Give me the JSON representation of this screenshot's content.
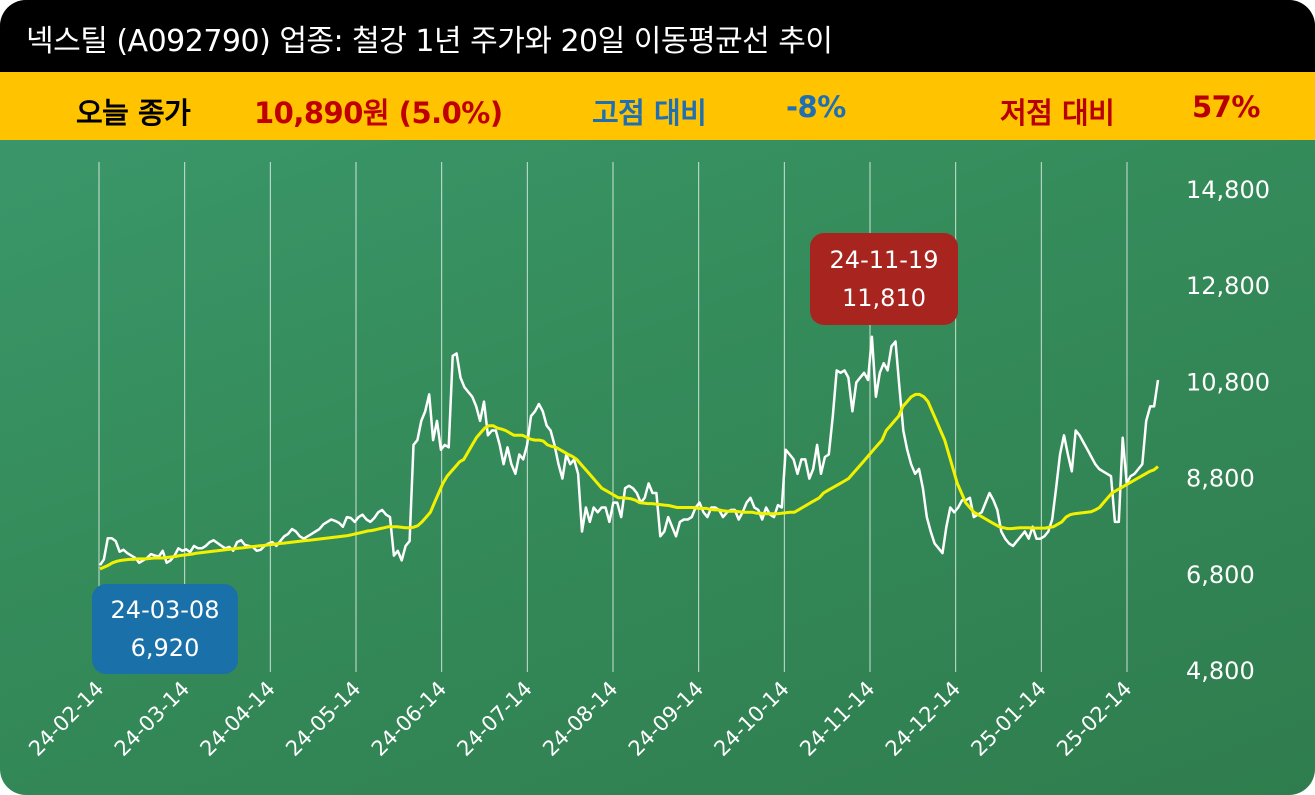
{
  "header": {
    "title": "넥스틸 (A092790) 업종: 철강 1년 주가와 20일 이동평균선 추이"
  },
  "stats": {
    "close_label": "오늘 종가",
    "close_value": "10,890원 (5.0%)",
    "high_label": "고점 대비",
    "high_value": "-8%",
    "low_label": "저점 대비",
    "low_value": "57%"
  },
  "colors": {
    "background": "#358c5b",
    "title_bar": "#000000",
    "stats_bar": "#ffc300",
    "close_value": "#c00000",
    "high_text": "#1f6fb2",
    "low_text": "#b80000",
    "price_line": "#ffffff",
    "ma_line": "#f2f200",
    "high_callout": "#a8241e",
    "low_callout": "#1a70a8"
  },
  "chart_data": {
    "type": "line",
    "y_ticks": [
      "14,800",
      "12,800",
      "10,800",
      "8,800",
      "6,800",
      "4,800"
    ],
    "ylim": [
      4800,
      14800
    ],
    "x_ticks": [
      "24-02-14",
      "24-03-14",
      "24-04-14",
      "24-05-14",
      "24-06-14",
      "24-07-14",
      "24-08-14",
      "24-09-14",
      "24-10-14",
      "24-11-14",
      "24-12-14",
      "25-01-14",
      "25-02-14"
    ],
    "grid": "vertical",
    "series": [
      {
        "key": "price",
        "values": [
          7000,
          7120,
          7560,
          7560,
          7500,
          7280,
          7320,
          7250,
          7200,
          7150,
          7050,
          7100,
          7150,
          7230,
          7200,
          7180,
          7300,
          7050,
          7100,
          7200,
          7350,
          7300,
          7330,
          7270,
          7400,
          7350,
          7350,
          7400,
          7480,
          7520,
          7460,
          7400,
          7350,
          7380,
          7300,
          7480,
          7520,
          7420,
          7400,
          7380,
          7300,
          7320,
          7400,
          7450,
          7480,
          7400,
          7500,
          7600,
          7650,
          7750,
          7700,
          7600,
          7550,
          7600,
          7650,
          7700,
          7750,
          7850,
          7900,
          7950,
          7920,
          7880,
          7800,
          8000,
          7980,
          7900,
          8000,
          8050,
          7950,
          7900,
          7980,
          8100,
          8150,
          8050,
          8000,
          7200,
          7300,
          7100,
          7400,
          7500,
          9500,
          9600,
          10000,
          10200,
          10550,
          9600,
          10000,
          9400,
          9500,
          9450,
          11350,
          11400,
          10900,
          10700,
          10600,
          10500,
          10300,
          10000,
          10400,
          9700,
          9800,
          9800,
          9500,
          9100,
          9450,
          9100,
          8900,
          9300,
          9200,
          9500,
          10100,
          10200,
          10350,
          10200,
          9900,
          9800,
          9500,
          9100,
          8800,
          9300,
          9100,
          9200,
          8900,
          7700,
          8200,
          7900,
          8200,
          8100,
          8200,
          8200,
          7900,
          8300,
          8300,
          8000,
          8600,
          8650,
          8600,
          8500,
          8300,
          8400,
          8700,
          8500,
          8500,
          7600,
          7700,
          8000,
          7800,
          7600,
          7900,
          7950,
          7950,
          8000,
          8200,
          8300,
          8100,
          8000,
          8200,
          8200,
          8150,
          8000,
          8100,
          8150,
          8150,
          7950,
          8100,
          8300,
          8400,
          8200,
          8150,
          7950,
          8200,
          8050,
          8000,
          8250,
          8200,
          9400,
          9300,
          9200,
          8900,
          9200,
          9200,
          8800,
          9000,
          9500,
          8900,
          9250,
          9300,
          10100,
          11050,
          11000,
          11050,
          10900,
          10200,
          10800,
          10900,
          11000,
          10850,
          11750,
          10500,
          11000,
          11200,
          11050,
          11550,
          11650,
          10700,
          9800,
          9400,
          9100,
          8900,
          9000,
          8600,
          8000,
          7700,
          7450,
          7350,
          7250,
          7800,
          8200,
          8100,
          8200,
          8350,
          8350,
          8400,
          8000,
          8050,
          8100,
          8300,
          8500,
          8350,
          8150,
          7700,
          7550,
          7450,
          7400,
          7500,
          7600,
          7700,
          7550,
          7800,
          7550,
          7550,
          7600,
          7700,
          7950,
          8600,
          9300,
          9700,
          9300,
          8950,
          9800,
          9700,
          9550,
          9400,
          9250,
          9100,
          9000,
          8950,
          8900,
          8850,
          7900,
          7900,
          9650,
          8700,
          8850,
          8900,
          9000,
          9100,
          10000,
          10300,
          10300,
          10850
        ]
      },
      {
        "key": "ma20",
        "values": [
          6920,
          6960,
          7000,
          7050,
          7080,
          7100,
          7110,
          7120,
          7120,
          7130,
          7130,
          7130,
          7140,
          7150,
          7150,
          7150,
          7160,
          7170,
          7180,
          7200,
          7210,
          7220,
          7230,
          7250,
          7260,
          7270,
          7280,
          7290,
          7300,
          7310,
          7320,
          7330,
          7340,
          7350,
          7360,
          7370,
          7380,
          7390,
          7400,
          7410,
          7420,
          7430,
          7440,
          7450,
          7460,
          7470,
          7480,
          7490,
          7500,
          7510,
          7520,
          7530,
          7540,
          7550,
          7560,
          7570,
          7580,
          7590,
          7600,
          7610,
          7630,
          7650,
          7670,
          7690,
          7710,
          7720,
          7740,
          7760,
          7780,
          7800,
          7800,
          7800,
          7790,
          7780,
          7780,
          7790,
          7820,
          7900,
          8000,
          8100,
          8300,
          8500,
          8700,
          8850,
          8950,
          9050,
          9150,
          9200,
          9350,
          9500,
          9650,
          9750,
          9850,
          9900,
          9900,
          9850,
          9830,
          9800,
          9750,
          9700,
          9700,
          9700,
          9660,
          9620,
          9600,
          9600,
          9580,
          9500,
          9470,
          9450,
          9400,
          9350,
          9300,
          9260,
          9200,
          9100,
          9000,
          8900,
          8800,
          8700,
          8600,
          8550,
          8500,
          8450,
          8400,
          8400,
          8390,
          8380,
          8350,
          8300,
          8290,
          8280,
          8280,
          8270,
          8260,
          8250,
          8240,
          8220,
          8200,
          8200,
          8200,
          8200,
          8200,
          8180,
          8180,
          8180,
          8160,
          8150,
          8150,
          8130,
          8120,
          8120,
          8120,
          8110,
          8100,
          8100,
          8100,
          8080,
          8080,
          8070,
          8070,
          8070,
          8070,
          8080,
          8090,
          8100,
          8100,
          8150,
          8200,
          8250,
          8300,
          8350,
          8400,
          8500,
          8550,
          8600,
          8650,
          8700,
          8750,
          8800,
          8900,
          9000,
          9100,
          9200,
          9300,
          9400,
          9500,
          9600,
          9800,
          9900,
          10000,
          10100,
          10300,
          10400,
          10500,
          10550,
          10550,
          10500,
          10400,
          10200,
          10000,
          9800,
          9600,
          9300,
          9000,
          8700,
          8500,
          8300,
          8200,
          8100,
          8050,
          8000,
          7950,
          7900,
          7850,
          7800,
          7780,
          7760,
          7760,
          7770,
          7780,
          7780,
          7780,
          7770,
          7770,
          7770,
          7770,
          7790,
          7800,
          7850,
          7900,
          8000,
          8050,
          8070,
          8080,
          8090,
          8100,
          8110,
          8150,
          8200,
          8300,
          8400,
          8500,
          8550,
          8600,
          8650,
          8700,
          8750,
          8800,
          8850,
          8900,
          8950,
          8980,
          9050
        ]
      }
    ],
    "annotations": [
      {
        "date": "24-11-19",
        "value": "11,810",
        "type": "high"
      },
      {
        "date": "24-03-08",
        "value": "6,920",
        "type": "low"
      }
    ]
  }
}
